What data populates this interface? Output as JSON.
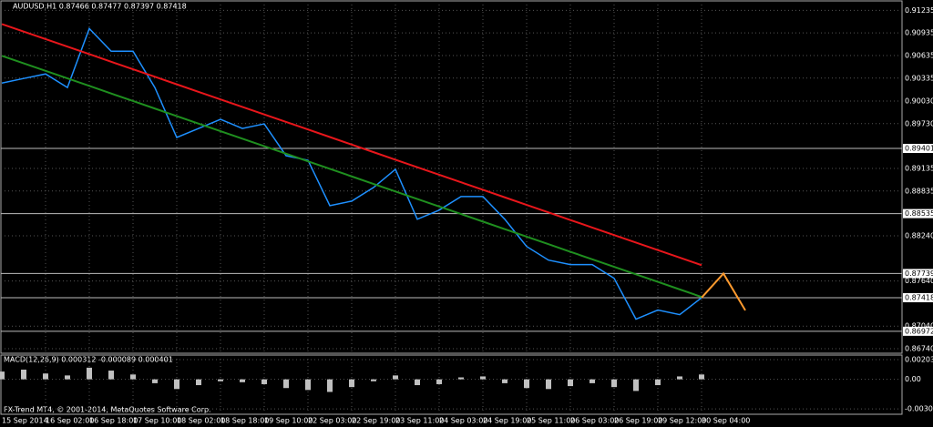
{
  "chart_data": {
    "type": "line",
    "title": "AUDUSD,H1 0.87466 0.87477 0.87397 0.87418",
    "footer": "FX-Trend MT4, © 2001-2014, MetaQuotes Software Corp.",
    "categories": [
      "15 Sep 2014",
      null,
      "16 Sep 02:00",
      null,
      "16 Sep 18:00",
      null,
      "17 Sep 10:00",
      null,
      "18 Sep 02:00",
      null,
      "18 Sep 18:00",
      null,
      "19 Sep 10:00",
      null,
      "22 Sep 03:00",
      null,
      "22 Sep 19:00",
      null,
      "23 Sep 11:00",
      null,
      "24 Sep 03:00",
      null,
      "24 Sep 19:00",
      null,
      "25 Sep 11:00",
      null,
      "26 Sep 03:00",
      null,
      "26 Sep 19:00",
      null,
      "29 Sep 12:00",
      null,
      "30 Sep 04:00",
      null,
      null
    ],
    "ylim": [
      0.8668,
      0.9136
    ],
    "yticks": [
      0.91235,
      0.90935,
      0.90635,
      0.90335,
      {
        "value": 0.9003,
        "label": "0.90030"
      },
      {
        "value": 0.8973,
        "label": "0.89730"
      },
      0.89135,
      0.88835,
      {
        "value": 0.8824,
        "label": "0.88240"
      },
      {
        "value": 0.8764,
        "label": "0.87640"
      },
      {
        "value": 0.8704,
        "label": "0.87040"
      },
      {
        "value": 0.8674,
        "label": "0.86740"
      }
    ],
    "grid": true,
    "levels": [
      0.89401,
      0.88535,
      0.87739,
      0.87418,
      0.86972
    ],
    "series": [
      {
        "color": "#1e90ff",
        "values": [
          0.90269,
          0.9033,
          0.9039,
          0.90209,
          0.90993,
          0.90692,
          0.90692,
          0.90209,
          0.89546,
          0.89666,
          0.89787,
          0.89666,
          0.89727,
          0.89304,
          0.89244,
          0.88641,
          0.88701,
          0.88882,
          0.89123,
          0.8846,
          0.88581,
          0.88762,
          0.88762,
          0.8846,
          0.88098,
          0.87917,
          0.87857,
          0.87857,
          0.87676,
          0.87133,
          0.87254,
          0.87193,
          0.87418,
          null,
          null
        ]
      },
      {
        "color": "#e8161b",
        "values": [
          0.91053,
          0.90953,
          0.90853,
          0.90753,
          0.90653,
          0.90552,
          0.90452,
          0.90352,
          0.90252,
          0.90152,
          0.90052,
          0.89952,
          0.89852,
          0.89752,
          0.89652,
          0.89552,
          0.89451,
          0.89351,
          0.89251,
          0.89151,
          0.89051,
          0.88951,
          0.88851,
          0.88751,
          0.88651,
          0.88551,
          0.8845,
          0.8835,
          0.8825,
          0.8815,
          0.8805,
          0.8795,
          0.8785,
          null,
          null
        ]
      },
      {
        "color": "#1f8f1f",
        "values": [
          0.90631,
          0.90531,
          0.90431,
          0.90331,
          0.90231,
          0.9013,
          0.9003,
          0.8993,
          0.8983,
          0.8973,
          0.8963,
          0.8953,
          0.8943,
          0.8933,
          0.8923,
          0.8913,
          0.89029,
          0.88929,
          0.88829,
          0.88729,
          0.88629,
          0.88529,
          0.88429,
          0.88329,
          0.88229,
          0.88129,
          0.88028,
          0.87928,
          0.87828,
          0.87728,
          0.87628,
          0.87528,
          0.87428,
          null,
          null
        ]
      },
      {
        "color": "#ff9a2e",
        "values": [
          null,
          null,
          null,
          null,
          null,
          null,
          null,
          null,
          null,
          null,
          null,
          null,
          null,
          null,
          null,
          null,
          null,
          null,
          null,
          null,
          null,
          null,
          null,
          null,
          null,
          null,
          null,
          null,
          null,
          null,
          null,
          null,
          0.87418,
          0.87739,
          0.8725
        ]
      }
    ],
    "macd": {
      "label": "MACD(12,26,9) 0.000312 -0.000089 0.000401",
      "ylim": [
        -0.0036,
        0.0025
      ],
      "yticks": [
        0.002036,
        {
          "value": 0,
          "label": "0.00"
        },
        -0.00305
      ],
      "color": "#c0c0c0",
      "values": [
        0.0008,
        0.001,
        0.0006,
        0.0004,
        0.0012,
        0.0009,
        0.0005,
        -0.0004,
        -0.001,
        -0.0006,
        -0.0002,
        -0.0003,
        -0.0005,
        -0.0009,
        -0.0011,
        -0.0013,
        -0.0008,
        -0.0002,
        0.0004,
        -0.0006,
        -0.0005,
        0.0002,
        0.0003,
        -0.0004,
        -0.0009,
        -0.001,
        -0.0007,
        -0.0004,
        -0.0008,
        -0.0012,
        -0.0006,
        0.0003,
        0.0005,
        null,
        null
      ]
    }
  }
}
